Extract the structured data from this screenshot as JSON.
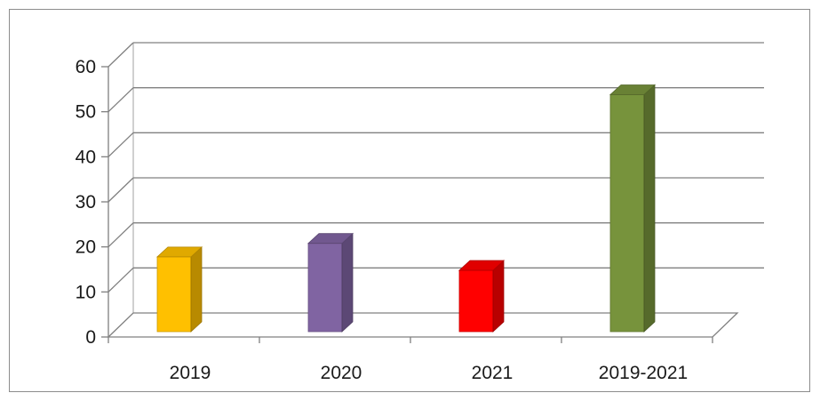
{
  "chart_data": {
    "type": "bar",
    "categories": [
      "2019",
      "2020",
      "2021",
      "2019-2021"
    ],
    "values": [
      17,
      20,
      14,
      53
    ],
    "colors": [
      "#ffc000",
      "#8064a2",
      "#ff0000",
      "#77933c"
    ],
    "ylim": [
      0,
      60
    ],
    "yticks": [
      "0",
      "10",
      "20",
      "30",
      "40",
      "50",
      "60"
    ],
    "grid": true,
    "legend": "none",
    "style": "3d-column"
  }
}
